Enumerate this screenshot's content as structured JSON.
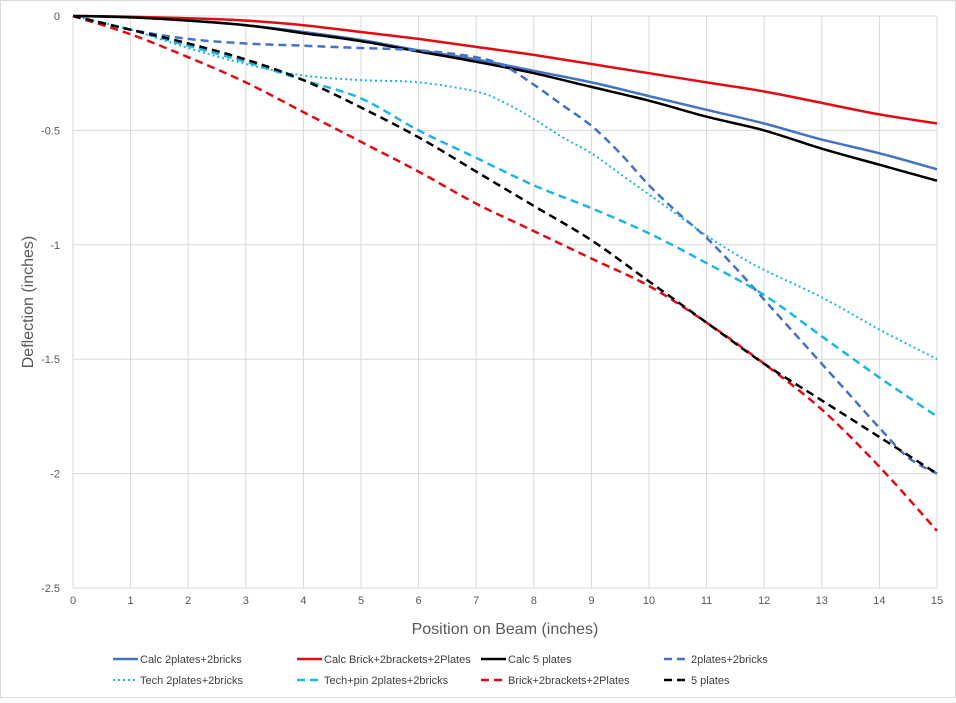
{
  "chart_data": {
    "type": "line",
    "title": "",
    "xlabel": "Position on Beam (inches)",
    "ylabel": "Deflection (inches)",
    "xlim": [
      0,
      15
    ],
    "ylim": [
      -2.5,
      0
    ],
    "x_ticks": [
      0,
      1,
      2,
      3,
      4,
      5,
      6,
      7,
      8,
      9,
      10,
      11,
      12,
      13,
      14,
      15
    ],
    "y_ticks": [
      0,
      -0.5,
      -1,
      -1.5,
      -2,
      -2.5
    ],
    "y_tick_labels": [
      "0",
      "-0.5",
      "-1",
      "-1.5",
      "-2",
      "-2.5"
    ],
    "grid": true,
    "legend_position": "bottom",
    "series": [
      {
        "name": "Calc 2plates+2bricks",
        "color": "#4472C4",
        "style": "solid",
        "x": [
          0,
          1,
          2,
          3,
          4,
          5,
          6,
          7,
          8,
          9,
          10,
          11,
          12,
          13,
          14,
          15
        ],
        "y": [
          0,
          -0.005,
          -0.02,
          -0.04,
          -0.07,
          -0.105,
          -0.15,
          -0.19,
          -0.24,
          -0.29,
          -0.35,
          -0.41,
          -0.47,
          -0.54,
          -0.6,
          -0.67
        ]
      },
      {
        "name": "Calc Brick+2brackets+2Plates",
        "color": "#E30B13",
        "style": "solid",
        "x": [
          0,
          1,
          2,
          3,
          4,
          5,
          6,
          7,
          8,
          9,
          10,
          11,
          12,
          13,
          14,
          15
        ],
        "y": [
          0,
          -0.003,
          -0.01,
          -0.02,
          -0.04,
          -0.07,
          -0.1,
          -0.135,
          -0.17,
          -0.21,
          -0.25,
          -0.29,
          -0.33,
          -0.38,
          -0.43,
          -0.47
        ]
      },
      {
        "name": "Calc 5 plates",
        "color": "#000000",
        "style": "solid",
        "x": [
          0,
          1,
          2,
          3,
          4,
          5,
          6,
          7,
          8,
          9,
          10,
          11,
          12,
          13,
          14,
          15
        ],
        "y": [
          0,
          -0.006,
          -0.02,
          -0.04,
          -0.075,
          -0.11,
          -0.155,
          -0.2,
          -0.25,
          -0.31,
          -0.37,
          -0.44,
          -0.5,
          -0.58,
          -0.65,
          -0.72
        ]
      },
      {
        "name": "2plates+2bricks",
        "color": "#4472C4",
        "style": "dash",
        "x": [
          0,
          1,
          2,
          3,
          4,
          5,
          6,
          7,
          7.5,
          8,
          8.5,
          9,
          9.5,
          10,
          10.5,
          11,
          11.5,
          12,
          12.5,
          13,
          13.5,
          14,
          14.5,
          15
        ],
        "y": [
          0,
          -0.06,
          -0.1,
          -0.12,
          -0.13,
          -0.14,
          -0.15,
          -0.18,
          -0.22,
          -0.3,
          -0.39,
          -0.48,
          -0.6,
          -0.74,
          -0.86,
          -0.97,
          -1.1,
          -1.24,
          -1.38,
          -1.52,
          -1.66,
          -1.8,
          -1.93,
          -2.0
        ]
      },
      {
        "name": "Tech 2plates+2bricks",
        "color": "#1CB5E5",
        "style": "dot",
        "x": [
          0,
          1,
          2,
          3,
          4,
          5,
          6,
          7,
          7.5,
          8,
          8.5,
          9,
          9.5,
          10,
          10.5,
          11,
          11.5,
          12,
          13,
          14,
          15
        ],
        "y": [
          0,
          -0.06,
          -0.14,
          -0.21,
          -0.26,
          -0.28,
          -0.29,
          -0.33,
          -0.38,
          -0.45,
          -0.53,
          -0.6,
          -0.69,
          -0.78,
          -0.87,
          -0.96,
          -1.04,
          -1.11,
          -1.23,
          -1.37,
          -1.5
        ]
      },
      {
        "name": "Tech+pin 2plates+2bricks",
        "color": "#1CB5E5",
        "style": "dash",
        "x": [
          0,
          1,
          2,
          3,
          4,
          5,
          6,
          7,
          8,
          9,
          10,
          11,
          12,
          13,
          14,
          15
        ],
        "y": [
          0,
          -0.06,
          -0.13,
          -0.2,
          -0.28,
          -0.36,
          -0.5,
          -0.62,
          -0.74,
          -0.84,
          -0.95,
          -1.08,
          -1.22,
          -1.4,
          -1.58,
          -1.75
        ]
      },
      {
        "name": "Brick+2brackets+2Plates",
        "color": "#E30B13",
        "style": "dash",
        "x": [
          0,
          1,
          2,
          3,
          4,
          5,
          6,
          7,
          8,
          9,
          10,
          11,
          12,
          13,
          14,
          15
        ],
        "y": [
          0,
          -0.08,
          -0.18,
          -0.29,
          -0.42,
          -0.55,
          -0.68,
          -0.82,
          -0.94,
          -1.06,
          -1.18,
          -1.34,
          -1.52,
          -1.72,
          -1.97,
          -2.25
        ]
      },
      {
        "name": "5 plates",
        "color": "#000000",
        "style": "dash",
        "x": [
          0,
          1,
          2,
          3,
          4,
          5,
          6,
          7,
          8,
          9,
          10,
          11,
          12,
          13,
          14,
          15
        ],
        "y": [
          0,
          -0.06,
          -0.12,
          -0.19,
          -0.28,
          -0.4,
          -0.53,
          -0.68,
          -0.83,
          -0.98,
          -1.16,
          -1.34,
          -1.52,
          -1.68,
          -1.84,
          -2.0
        ]
      }
    ]
  }
}
